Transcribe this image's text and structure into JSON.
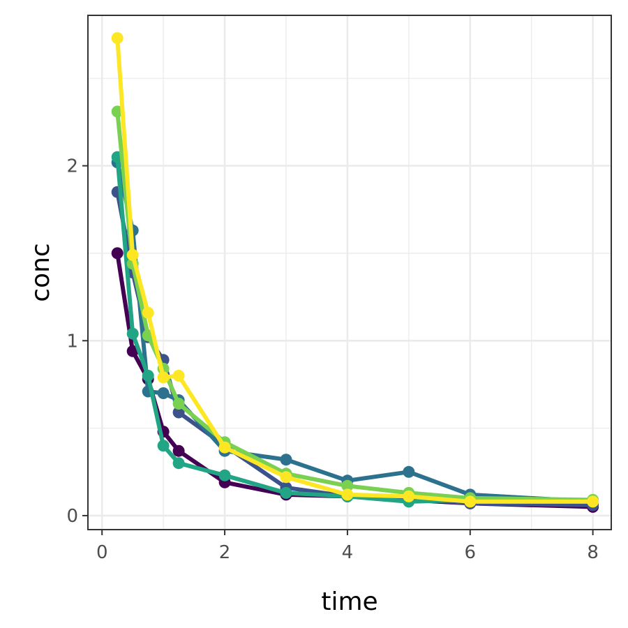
{
  "chart_data": {
    "type": "line",
    "title": "",
    "xlabel": "time",
    "ylabel": "conc",
    "xlim": [
      -0.23,
      8.3
    ],
    "ylim": [
      -0.08,
      2.86
    ],
    "x_ticks": [
      0,
      2,
      4,
      6,
      8
    ],
    "y_ticks": [
      0,
      1,
      2
    ],
    "x_tick_labels": [
      "0",
      "2",
      "4",
      "6",
      "8"
    ],
    "y_tick_labels": [
      "0",
      "1",
      "2"
    ],
    "grid": true,
    "legend": "none",
    "background": "#ffffff",
    "grid_color": "#ebebeb",
    "panel_border_color": "#333333",
    "series": [
      {
        "color": "#440154",
        "points": [
          [
            0.25,
            1.5
          ],
          [
            0.5,
            0.94
          ],
          [
            0.75,
            0.78
          ],
          [
            1,
            0.48
          ],
          [
            1.25,
            0.37
          ],
          [
            2,
            0.19
          ],
          [
            3,
            0.12
          ],
          [
            4,
            0.11
          ],
          [
            6,
            0.07
          ],
          [
            8,
            0.05
          ]
        ]
      },
      {
        "color": "#3b528b",
        "points": [
          [
            0.25,
            1.85
          ],
          [
            0.5,
            1.39
          ],
          [
            0.75,
            1.02
          ],
          [
            1,
            0.89
          ],
          [
            1.25,
            0.59
          ],
          [
            2,
            0.4
          ],
          [
            3,
            0.16
          ],
          [
            4,
            0.11
          ],
          [
            5,
            0.1
          ],
          [
            6,
            0.07
          ],
          [
            8,
            0.06
          ]
        ]
      },
      {
        "color": "#2c728e",
        "points": [
          [
            0.25,
            2.02
          ],
          [
            0.5,
            1.63
          ],
          [
            0.75,
            0.71
          ],
          [
            1,
            0.7
          ],
          [
            1.25,
            0.66
          ],
          [
            2,
            0.37
          ],
          [
            3,
            0.32
          ],
          [
            4,
            0.2
          ],
          [
            5,
            0.25
          ],
          [
            6,
            0.12
          ],
          [
            8,
            0.08
          ]
        ]
      },
      {
        "color": "#21a585",
        "points": [
          [
            0.25,
            2.05
          ],
          [
            0.5,
            1.04
          ],
          [
            0.75,
            0.8
          ],
          [
            1,
            0.4
          ],
          [
            1.25,
            0.3
          ],
          [
            2,
            0.23
          ],
          [
            3,
            0.13
          ],
          [
            4,
            0.11
          ],
          [
            5,
            0.08
          ],
          [
            6,
            0.09
          ],
          [
            8,
            0.08
          ]
        ]
      },
      {
        "color": "#7ad151",
        "points": [
          [
            0.25,
            2.31
          ],
          [
            0.5,
            1.44
          ],
          [
            0.75,
            1.03
          ],
          [
            1,
            0.84
          ],
          [
            1.25,
            0.64
          ],
          [
            2,
            0.42
          ],
          [
            3,
            0.24
          ],
          [
            4,
            0.17
          ],
          [
            5,
            0.13
          ],
          [
            6,
            0.1
          ],
          [
            8,
            0.09
          ]
        ]
      },
      {
        "color": "#fde725",
        "points": [
          [
            0.25,
            2.73
          ],
          [
            0.5,
            1.49
          ],
          [
            0.75,
            1.16
          ],
          [
            1,
            0.79
          ],
          [
            1.25,
            0.8
          ],
          [
            2,
            0.39
          ],
          [
            3,
            0.22
          ],
          [
            4,
            0.12
          ],
          [
            5,
            0.11
          ],
          [
            6,
            0.08
          ],
          [
            8,
            0.08
          ]
        ]
      }
    ]
  }
}
